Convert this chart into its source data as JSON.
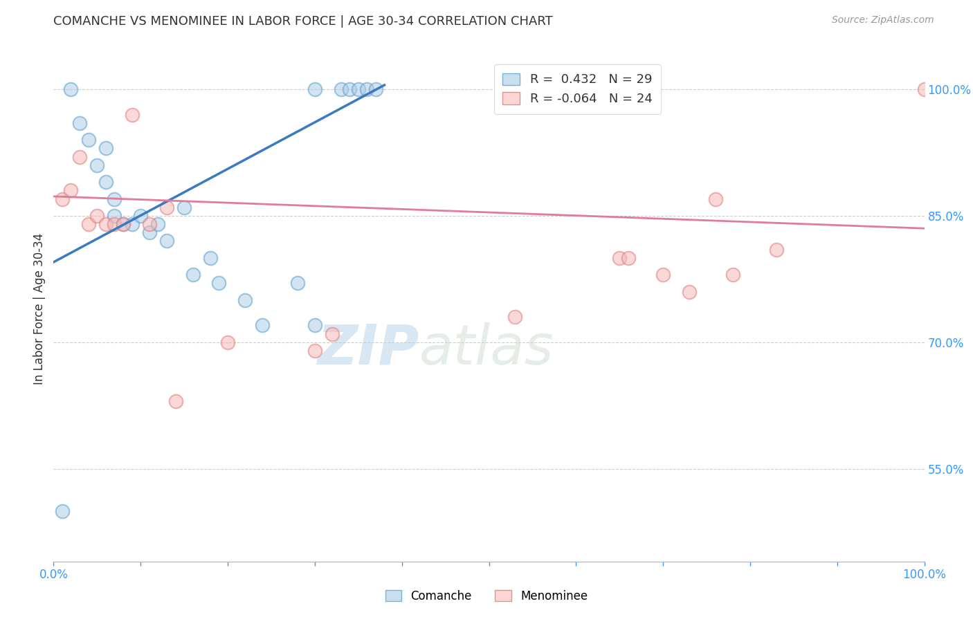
{
  "title": "COMANCHE VS MENOMINEE IN LABOR FORCE | AGE 30-34 CORRELATION CHART",
  "source": "Source: ZipAtlas.com",
  "xlabel": "",
  "ylabel": "In Labor Force | Age 30-34",
  "xlim": [
    0.0,
    1.0
  ],
  "ylim": [
    0.44,
    1.04
  ],
  "xticks": [
    0.0,
    0.1,
    0.2,
    0.3,
    0.4,
    0.5,
    0.6,
    0.7,
    0.8,
    0.9,
    1.0
  ],
  "ytick_positions": [
    0.55,
    0.7,
    0.85,
    1.0
  ],
  "ytick_labels": [
    "55.0%",
    "70.0%",
    "85.0%",
    "100.0%"
  ],
  "watermark_zip": "ZIP",
  "watermark_atlas": "atlas",
  "comanche_R": 0.432,
  "comanche_N": 29,
  "menominee_R": -0.064,
  "menominee_N": 24,
  "comanche_color_fill": "#aecde8",
  "comanche_color_edge": "#5b9dc9",
  "menominee_color_fill": "#f5b8b8",
  "menominee_color_edge": "#e07b7b",
  "comanche_line_color": "#3a7abf",
  "menominee_line_color": "#e07b9b",
  "grid_color": "#cccccc",
  "comanche_x": [
    0.01,
    0.02,
    0.03,
    0.04,
    0.05,
    0.06,
    0.06,
    0.07,
    0.07,
    0.08,
    0.09,
    0.1,
    0.11,
    0.12,
    0.13,
    0.15,
    0.16,
    0.18,
    0.19,
    0.22,
    0.24,
    0.28,
    0.3,
    0.3,
    0.33,
    0.34,
    0.35,
    0.36,
    0.37
  ],
  "comanche_y": [
    0.5,
    1.0,
    0.96,
    0.94,
    0.91,
    0.93,
    0.89,
    0.87,
    0.85,
    0.84,
    0.84,
    0.85,
    0.83,
    0.84,
    0.82,
    0.86,
    0.78,
    0.8,
    0.77,
    0.75,
    0.72,
    0.77,
    0.72,
    1.0,
    1.0,
    1.0,
    1.0,
    1.0,
    1.0
  ],
  "menominee_x": [
    0.01,
    0.02,
    0.03,
    0.04,
    0.05,
    0.06,
    0.07,
    0.08,
    0.09,
    0.11,
    0.13,
    0.14,
    0.2,
    0.3,
    0.32,
    0.53,
    0.65,
    0.66,
    0.7,
    0.73,
    0.76,
    0.78,
    0.83,
    1.0
  ],
  "menominee_y": [
    0.87,
    0.88,
    0.92,
    0.84,
    0.85,
    0.84,
    0.84,
    0.84,
    0.97,
    0.84,
    0.86,
    0.63,
    0.7,
    0.69,
    0.71,
    0.73,
    0.8,
    0.8,
    0.78,
    0.76,
    0.87,
    0.78,
    0.81,
    1.0
  ],
  "comanche_trendline_x": [
    0.0,
    0.38
  ],
  "comanche_trendline_y": [
    0.795,
    1.005
  ],
  "menominee_trendline_x": [
    0.0,
    1.0
  ],
  "menominee_trendline_y": [
    0.873,
    0.835
  ]
}
